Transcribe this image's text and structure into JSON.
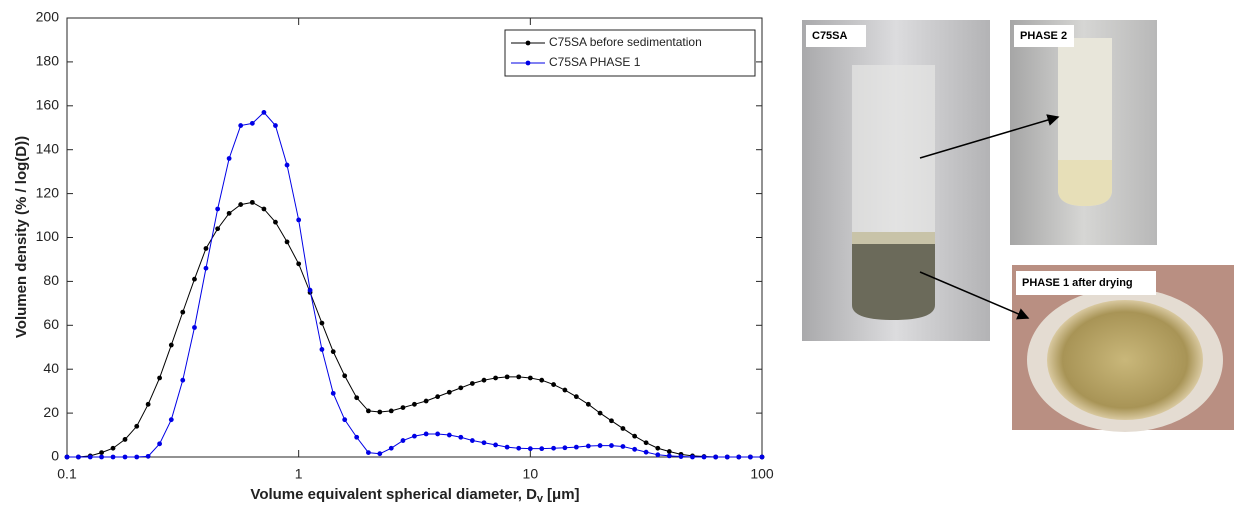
{
  "chart_data": {
    "type": "line",
    "ylabel": "Volumen density (% / log(D))",
    "xlabel": "Volume equivalent spherical diameter, D",
    "xlabel_sub": "v",
    "xlabel_unit": "[μm]",
    "xscale": "log",
    "xlim": [
      0.1,
      100
    ],
    "xticks": [
      0.1,
      1,
      10,
      100
    ],
    "ylim": [
      0,
      200
    ],
    "yticks": [
      0,
      20,
      40,
      60,
      80,
      100,
      120,
      140,
      160,
      180,
      200
    ],
    "legend": "upper right",
    "x": [
      0.1,
      0.112,
      0.126,
      0.141,
      0.158,
      0.178,
      0.2,
      0.224,
      0.251,
      0.282,
      0.316,
      0.355,
      0.398,
      0.447,
      0.501,
      0.562,
      0.631,
      0.708,
      0.794,
      0.891,
      1,
      1.12,
      1.26,
      1.41,
      1.58,
      1.78,
      2,
      2.24,
      2.51,
      2.82,
      3.16,
      3.55,
      3.98,
      4.47,
      5.01,
      5.62,
      6.31,
      7.08,
      7.94,
      8.91,
      10,
      11.2,
      12.6,
      14.1,
      15.8,
      17.8,
      20,
      22.4,
      25.1,
      28.2,
      31.6,
      35.5,
      39.8,
      44.7,
      50.1,
      56.2,
      63.1,
      70.8,
      79.4,
      89.1,
      100
    ],
    "series": [
      {
        "name": "C75SA before sedimentation",
        "color": "#000000",
        "values": [
          0,
          0,
          0.5,
          2,
          4,
          8,
          14,
          24,
          36,
          51,
          66,
          81,
          95,
          104,
          111,
          115,
          116,
          113,
          107,
          98,
          88,
          75,
          61,
          48,
          37,
          27,
          21,
          20.5,
          21,
          22.5,
          24,
          25.5,
          27.5,
          29.5,
          31.5,
          33.5,
          35,
          36,
          36.5,
          36.5,
          36,
          35,
          33,
          30.5,
          27.5,
          24,
          20,
          16.5,
          13,
          9.5,
          6.5,
          4,
          2.5,
          1.2,
          0.5,
          0.2,
          0,
          0,
          0,
          0,
          0
        ]
      },
      {
        "name": "C75SA PHASE 1",
        "color": "#0000e6",
        "values": [
          0,
          0,
          0,
          0,
          0,
          0,
          0,
          0.3,
          6,
          17,
          35,
          59,
          86,
          113,
          136,
          151,
          152,
          157,
          151,
          133,
          108,
          76,
          49,
          29,
          17,
          9,
          2,
          1.5,
          4,
          7.5,
          9.5,
          10.5,
          10.5,
          10,
          9,
          7.5,
          6.5,
          5.5,
          4.5,
          4,
          3.8,
          3.8,
          4,
          4.2,
          4.5,
          5,
          5.2,
          5.2,
          4.8,
          3.5,
          2.2,
          1,
          0.5,
          0.2,
          0,
          0,
          0,
          0,
          0,
          0,
          0
        ]
      }
    ]
  },
  "photos": [
    {
      "label": "C75SA"
    },
    {
      "label": "PHASE 2"
    },
    {
      "label": "PHASE 1 after drying"
    }
  ]
}
